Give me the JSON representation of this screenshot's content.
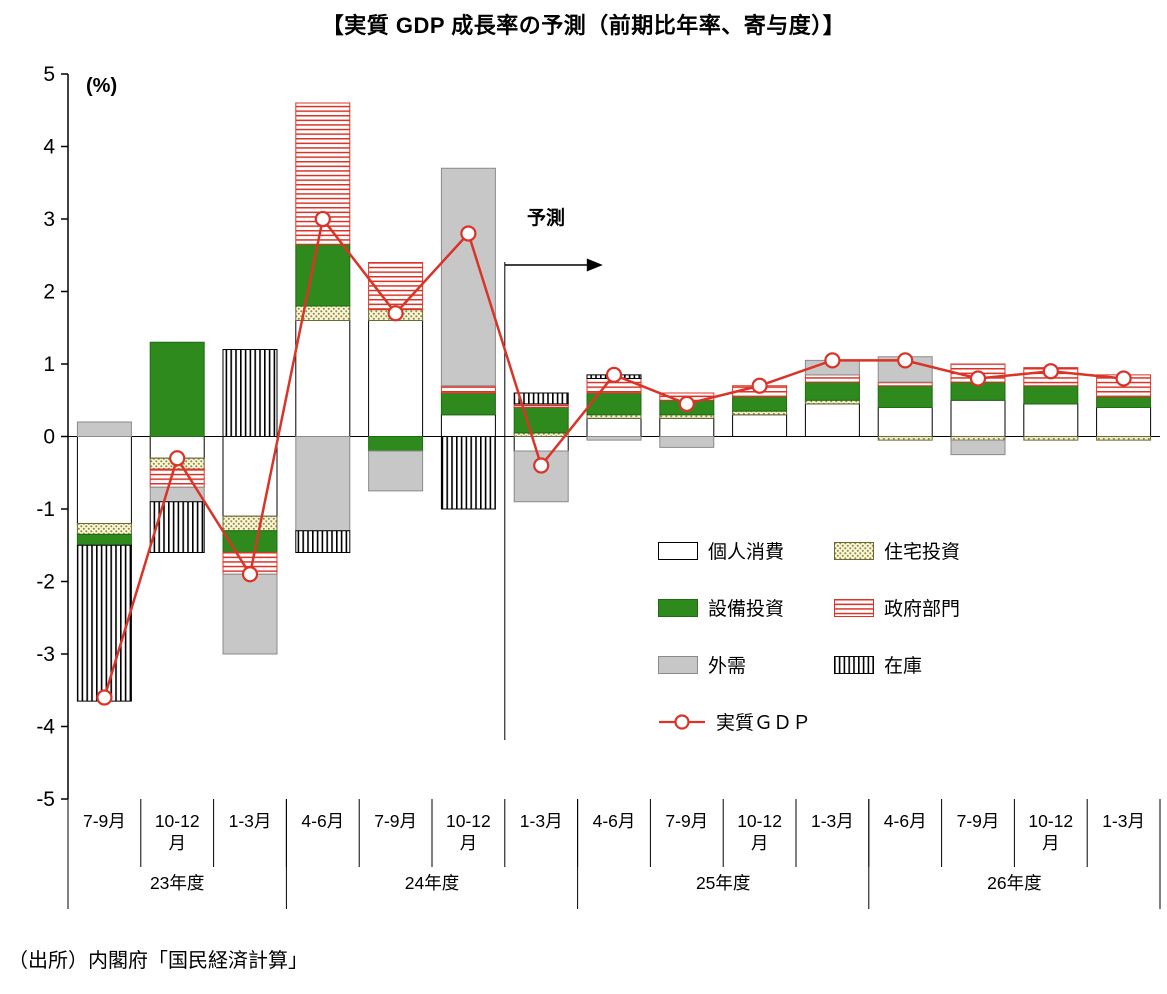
{
  "title": "【実質 GDP 成長率の予測（前期比年率、寄与度）】",
  "percent_label": "(%)",
  "forecast_label": "予測",
  "source_note": "（出所）内閣府「国民経済計算」",
  "chart_data": {
    "type": "bar",
    "stacked": true,
    "ylim": [
      -5,
      5
    ],
    "ytick_interval": 1,
    "grid": false,
    "legend_position": "inside-right",
    "categories": [
      "7-9月",
      "10-12月",
      "1-3月",
      "4-6月",
      "7-9月",
      "10-12月",
      "1-3月",
      "4-6月",
      "7-9月",
      "10-12月",
      "1-3月",
      "4-6月",
      "7-9月",
      "10-12月",
      "1-3月"
    ],
    "category_display": [
      "7-9月",
      "10-12\n月",
      "1-3月",
      "4-6月",
      "7-9月",
      "10-12\n月",
      "1-3月",
      "4-6月",
      "7-9月",
      "10-12\n月",
      "1-3月",
      "4-6月",
      "7-9月",
      "10-12\n月",
      "1-3月"
    ],
    "groups": [
      {
        "label": "23年度",
        "count": 3
      },
      {
        "label": "24年度",
        "count": 4
      },
      {
        "label": "25年度",
        "count": 4
      },
      {
        "label": "26年度",
        "count": 4
      }
    ],
    "forecast_start_index": 6,
    "series": [
      {
        "name": "個人消費",
        "key": "consumption",
        "values": [
          -1.2,
          -0.3,
          -1.1,
          1.6,
          1.6,
          0.3,
          -0.2,
          0.25,
          0.25,
          0.3,
          0.45,
          0.4,
          0.5,
          0.45,
          0.4
        ]
      },
      {
        "name": "住宅投資",
        "key": "housing",
        "values": [
          -0.15,
          -0.15,
          -0.2,
          0.2,
          0.15,
          0,
          0.05,
          0.05,
          0.05,
          0.05,
          0.05,
          -0.05,
          -0.05,
          -0.05,
          -0.05
        ]
      },
      {
        "name": "設備投資",
        "key": "capex",
        "values": [
          -0.15,
          1.3,
          -0.3,
          0.85,
          -0.2,
          0.3,
          0.35,
          0.3,
          0.2,
          0.2,
          0.25,
          0.3,
          0.25,
          0.25,
          0.15
        ]
      },
      {
        "name": "政府部門",
        "key": "government",
        "values": [
          0,
          -0.25,
          -0.3,
          1.95,
          0.65,
          0.1,
          0.05,
          0.2,
          0.1,
          0.15,
          0.1,
          0.05,
          0.25,
          0.25,
          0.3
        ]
      },
      {
        "name": "外需",
        "key": "external",
        "values": [
          0.2,
          -0.2,
          -1.1,
          -1.3,
          -0.55,
          3.0,
          -0.7,
          -0.05,
          -0.15,
          0,
          0.2,
          0.35,
          -0.2,
          0,
          0
        ]
      },
      {
        "name": "在庫",
        "key": "inventory",
        "values": [
          -2.15,
          -0.7,
          1.2,
          -0.3,
          0,
          -1.0,
          0.15,
          0.05,
          0,
          0,
          0,
          0,
          0,
          0,
          0
        ]
      }
    ],
    "line_series": {
      "name": "実質ＧＤＰ",
      "values": [
        -3.6,
        -0.3,
        -1.9,
        3.0,
        1.7,
        2.8,
        -0.4,
        0.85,
        0.45,
        0.7,
        1.05,
        1.05,
        0.8,
        0.9,
        0.8
      ]
    },
    "colors": {
      "red": "#d93427",
      "green": "#2e8a1c",
      "gray": "#c7c7c7",
      "housing_bg": "#faf5da",
      "housing_dot": "#8e8e3e",
      "black": "#000000"
    }
  }
}
